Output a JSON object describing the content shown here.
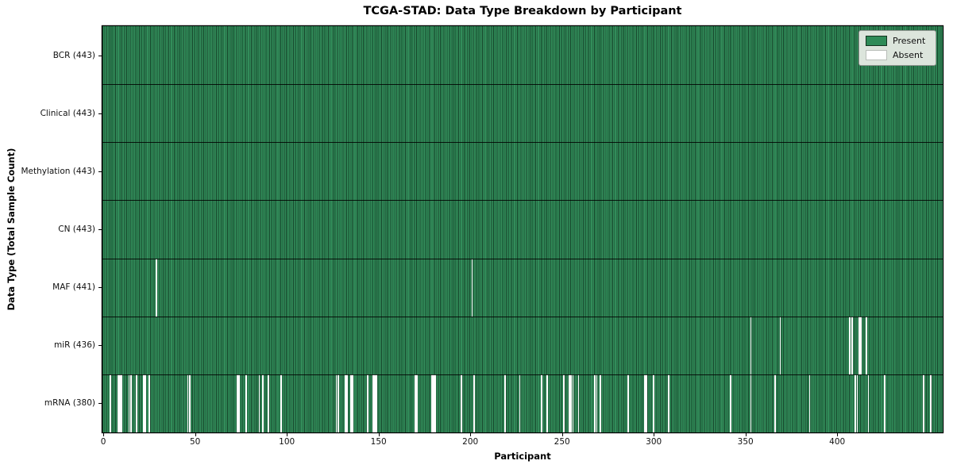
{
  "title": "TCGA-STAD: Data Type Breakdown by Participant",
  "x_axis": {
    "label": "Participant",
    "ticks": [
      0,
      50,
      100,
      150,
      200,
      250,
      300,
      350,
      400
    ]
  },
  "y_axis": {
    "label": "Data Type (Total Sample Count)"
  },
  "legend": {
    "present_label": "Present",
    "absent_label": "Absent",
    "present_color": "#2e8b57",
    "absent_color": "#ffffff"
  },
  "chart_data": {
    "type": "heatmap",
    "subtype": "presence-absence-matrix",
    "title": "TCGA-STAD: Data Type Breakdown by Participant",
    "xlabel": "Participant",
    "ylabel": "Data Type (Total Sample Count)",
    "xlim": [
      0,
      458
    ],
    "n_participants": 458,
    "grid": false,
    "legend_position": "upper right",
    "colors": {
      "present": "#2e8b57",
      "absent": "#ffffff"
    },
    "rows": [
      {
        "name": "bcr",
        "label": "BCR (443)",
        "data_type": "BCR",
        "total_sample_count": 443,
        "absent_participants": []
      },
      {
        "name": "clinical",
        "label": "Clinical (443)",
        "data_type": "Clinical",
        "total_sample_count": 443,
        "absent_participants": []
      },
      {
        "name": "methylation",
        "label": "Methylation (443)",
        "data_type": "Methylation",
        "total_sample_count": 443,
        "absent_participants": []
      },
      {
        "name": "cn",
        "label": "CN (443)",
        "data_type": "CN",
        "total_sample_count": 443,
        "absent_participants": []
      },
      {
        "name": "maf",
        "label": "MAF (441)",
        "data_type": "MAF",
        "total_sample_count": 441,
        "absent_participants": [
          29,
          201
        ]
      },
      {
        "name": "mir",
        "label": "miR (436)",
        "data_type": "miR",
        "total_sample_count": 436,
        "absent_participants": [
          353,
          369,
          407,
          408,
          412,
          413,
          416
        ]
      },
      {
        "name": "mrna",
        "label": "mRNA (380)",
        "data_type": "mRNA",
        "total_sample_count": 380,
        "absent_participants": [
          4,
          8,
          9,
          10,
          14,
          15,
          18,
          22,
          23,
          25,
          46,
          47,
          73,
          74,
          78,
          85,
          87,
          90,
          97,
          127,
          128,
          132,
          133,
          135,
          136,
          144,
          147,
          148,
          149,
          170,
          171,
          179,
          180,
          181,
          195,
          202,
          219,
          227,
          239,
          242,
          251,
          254,
          255,
          256,
          259,
          268,
          269,
          271,
          286,
          295,
          296,
          300,
          308,
          342,
          353,
          366,
          385,
          410,
          411,
          417,
          426,
          447,
          451
        ]
      }
    ]
  }
}
